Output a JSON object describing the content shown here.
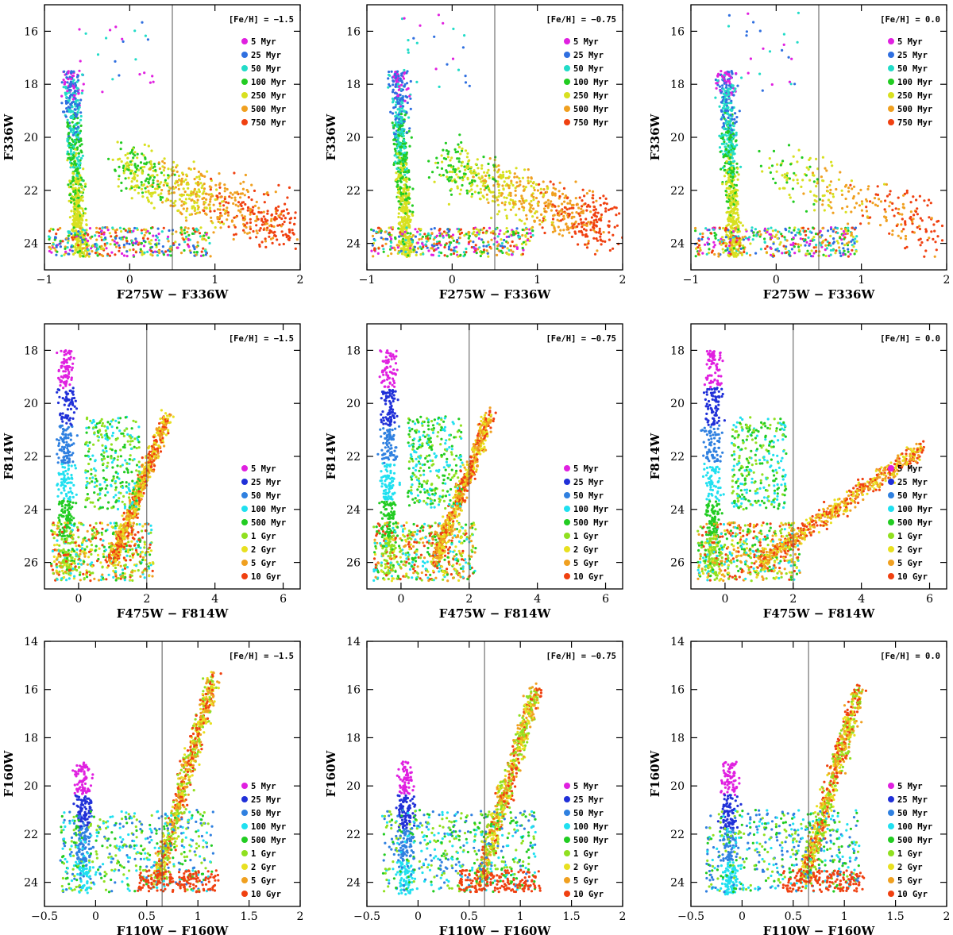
{
  "chart_data": [
    {
      "type": "scatter",
      "row": 0,
      "col": 0,
      "annotation": "[Fe/H] = −1.5",
      "xlabel": "F275W − F336W",
      "ylabel": "F336W",
      "xlim": [
        -1,
        2
      ],
      "ylim": [
        25,
        15
      ],
      "xticks": [
        "−1",
        "0",
        "1",
        "2"
      ],
      "xtick_values": [
        -1,
        0,
        1,
        2
      ],
      "yticks": [
        "16",
        "18",
        "20",
        "22",
        "24"
      ],
      "ytick_values": [
        16,
        18,
        20,
        22,
        24
      ],
      "cut_x": 0.5,
      "legend_position": "top-right",
      "legend": [
        "5 Myr",
        "25 Myr",
        "50 Myr",
        "100 Myr",
        "250 Myr",
        "500 Myr",
        "750 Myr"
      ],
      "legend_colors": [
        "#e020e0",
        "#2f6fe0",
        "#22dcc8",
        "#22cc22",
        "#d8e020",
        "#f0a020",
        "#f04010"
      ]
    },
    {
      "type": "scatter",
      "row": 0,
      "col": 1,
      "annotation": "[Fe/H] = −0.75",
      "xlabel": "F275W − F336W",
      "ylabel": "F336W",
      "xlim": [
        -1,
        2
      ],
      "ylim": [
        25,
        15
      ],
      "xticks": [
        "−1",
        "0",
        "1",
        "2"
      ],
      "xtick_values": [
        -1,
        0,
        1,
        2
      ],
      "yticks": [
        "16",
        "18",
        "20",
        "22",
        "24"
      ],
      "ytick_values": [
        16,
        18,
        20,
        22,
        24
      ],
      "cut_x": 0.5,
      "legend_position": "top-right",
      "legend": [
        "5 Myr",
        "25 Myr",
        "50 Myr",
        "100 Myr",
        "250 Myr",
        "500 Myr",
        "750 Myr"
      ],
      "legend_colors": [
        "#e020e0",
        "#2f6fe0",
        "#22dcc8",
        "#22cc22",
        "#d8e020",
        "#f0a020",
        "#f04010"
      ]
    },
    {
      "type": "scatter",
      "row": 0,
      "col": 2,
      "annotation": "[Fe/H] = 0.0",
      "xlabel": "F275W − F336W",
      "ylabel": "F336W",
      "xlim": [
        -1,
        2
      ],
      "ylim": [
        25,
        15
      ],
      "xticks": [
        "−1",
        "0",
        "1",
        "2"
      ],
      "xtick_values": [
        -1,
        0,
        1,
        2
      ],
      "yticks": [
        "16",
        "18",
        "20",
        "22",
        "24"
      ],
      "ytick_values": [
        16,
        18,
        20,
        22,
        24
      ],
      "cut_x": 0.5,
      "legend_position": "top-right",
      "legend": [
        "5 Myr",
        "25 Myr",
        "50 Myr",
        "100 Myr",
        "250 Myr",
        "500 Myr",
        "750 Myr"
      ],
      "legend_colors": [
        "#e020e0",
        "#2f6fe0",
        "#22dcc8",
        "#22cc22",
        "#d8e020",
        "#f0a020",
        "#f04010"
      ]
    },
    {
      "type": "scatter",
      "row": 1,
      "col": 0,
      "annotation": "[Fe/H] = −1.5",
      "xlabel": "F475W − F814W",
      "ylabel": "F814W",
      "xlim": [
        -1,
        6.5
      ],
      "ylim": [
        27,
        17
      ],
      "xticks": [
        "0",
        "2",
        "4",
        "6"
      ],
      "xtick_values": [
        0,
        2,
        4,
        6
      ],
      "yticks": [
        "18",
        "20",
        "22",
        "24",
        "26"
      ],
      "ytick_values": [
        18,
        20,
        22,
        24,
        26
      ],
      "cut_x": 2,
      "legend_position": "lower-right",
      "legend": [
        "5 Myr",
        "25 Myr",
        "50 Myr",
        "100 Myr",
        "500 Myr",
        "1 Gyr",
        "2 Gyr",
        "5 Gyr",
        "10 Gyr"
      ],
      "legend_colors": [
        "#e020e0",
        "#2030d8",
        "#2f80e0",
        "#20e0f0",
        "#22cc22",
        "#90e020",
        "#e8e020",
        "#f0a020",
        "#f04010"
      ]
    },
    {
      "type": "scatter",
      "row": 1,
      "col": 1,
      "annotation": "[Fe/H] = −0.75",
      "xlabel": "F475W − F814W",
      "ylabel": "F814W",
      "xlim": [
        -1,
        6.5
      ],
      "ylim": [
        27,
        17
      ],
      "xticks": [
        "0",
        "2",
        "4",
        "6"
      ],
      "xtick_values": [
        0,
        2,
        4,
        6
      ],
      "yticks": [
        "18",
        "20",
        "22",
        "24",
        "26"
      ],
      "ytick_values": [
        18,
        20,
        22,
        24,
        26
      ],
      "cut_x": 2,
      "legend_position": "lower-right",
      "legend": [
        "5 Myr",
        "25 Myr",
        "50 Myr",
        "100 Myr",
        "500 Myr",
        "1 Gyr",
        "2 Gyr",
        "5 Gyr",
        "10 Gyr"
      ],
      "legend_colors": [
        "#e020e0",
        "#2030d8",
        "#2f80e0",
        "#20e0f0",
        "#22cc22",
        "#90e020",
        "#e8e020",
        "#f0a020",
        "#f04010"
      ]
    },
    {
      "type": "scatter",
      "row": 1,
      "col": 2,
      "annotation": "[Fe/H] = 0.0",
      "xlabel": "F475W − F814W",
      "ylabel": "F814W",
      "xlim": [
        -1,
        6.5
      ],
      "ylim": [
        27,
        17
      ],
      "xticks": [
        "0",
        "2",
        "4",
        "6"
      ],
      "xtick_values": [
        0,
        2,
        4,
        6
      ],
      "yticks": [
        "18",
        "20",
        "22",
        "24",
        "26"
      ],
      "ytick_values": [
        18,
        20,
        22,
        24,
        26
      ],
      "cut_x": 2,
      "legend_position": "lower-right",
      "legend": [
        "5 Myr",
        "25 Myr",
        "50 Myr",
        "100 Myr",
        "500 Myr",
        "1 Gyr",
        "2 Gyr",
        "5 Gyr",
        "10 Gyr"
      ],
      "legend_colors": [
        "#e020e0",
        "#2030d8",
        "#2f80e0",
        "#20e0f0",
        "#22cc22",
        "#90e020",
        "#e8e020",
        "#f0a020",
        "#f04010"
      ]
    },
    {
      "type": "scatter",
      "row": 2,
      "col": 0,
      "annotation": "[Fe/H] = −1.5",
      "xlabel": "F110W − F160W",
      "ylabel": "F160W",
      "xlim": [
        -0.5,
        2
      ],
      "ylim": [
        25,
        14
      ],
      "xticks": [
        "−0.5",
        "0",
        "0.5",
        "1",
        "1.5",
        "2"
      ],
      "xtick_values": [
        -0.5,
        0,
        0.5,
        1,
        1.5,
        2
      ],
      "yticks": [
        "14",
        "16",
        "18",
        "20",
        "22",
        "24"
      ],
      "ytick_values": [
        14,
        16,
        18,
        20,
        22,
        24
      ],
      "cut_x": 0.65,
      "legend_position": "lower-right",
      "legend": [
        "5 Myr",
        "25 Myr",
        "50 Myr",
        "100 Myr",
        "500 Myr",
        "1 Gyr",
        "2 Gyr",
        "5 Gyr",
        "10 Gyr"
      ],
      "legend_colors": [
        "#e020e0",
        "#2030d8",
        "#2f80e0",
        "#20e0f0",
        "#22cc22",
        "#90e020",
        "#e8e020",
        "#f0a020",
        "#f04010"
      ]
    },
    {
      "type": "scatter",
      "row": 2,
      "col": 1,
      "annotation": "[Fe/H] = −0.75",
      "xlabel": "F110W − F160W",
      "ylabel": "F160W",
      "xlim": [
        -0.5,
        2
      ],
      "ylim": [
        25,
        14
      ],
      "xticks": [
        "−0.5",
        "0",
        "0.5",
        "1",
        "1.5",
        "2"
      ],
      "xtick_values": [
        -0.5,
        0,
        0.5,
        1,
        1.5,
        2
      ],
      "yticks": [
        "14",
        "16",
        "18",
        "20",
        "22",
        "24"
      ],
      "ytick_values": [
        14,
        16,
        18,
        20,
        22,
        24
      ],
      "cut_x": 0.65,
      "legend_position": "lower-right",
      "legend": [
        "5 Myr",
        "25 Myr",
        "50 Myr",
        "100 Myr",
        "500 Myr",
        "1 Gyr",
        "2 Gyr",
        "5 Gyr",
        "10 Gyr"
      ],
      "legend_colors": [
        "#e020e0",
        "#2030d8",
        "#2f80e0",
        "#20e0f0",
        "#22cc22",
        "#90e020",
        "#e8e020",
        "#f0a020",
        "#f04010"
      ]
    },
    {
      "type": "scatter",
      "row": 2,
      "col": 2,
      "annotation": "[Fe/H] = 0.0",
      "xlabel": "F110W − F160W",
      "ylabel": "F160W",
      "xlim": [
        -0.5,
        2
      ],
      "ylim": [
        25,
        14
      ],
      "xticks": [
        "−0.5",
        "0",
        "0.5",
        "1",
        "1.5",
        "2"
      ],
      "xtick_values": [
        -0.5,
        0,
        0.5,
        1,
        1.5,
        2
      ],
      "yticks": [
        "14",
        "16",
        "18",
        "20",
        "22",
        "24"
      ],
      "ytick_values": [
        14,
        16,
        18,
        20,
        22,
        24
      ],
      "cut_x": 0.65,
      "legend_position": "lower-right",
      "legend": [
        "5 Myr",
        "25 Myr",
        "50 Myr",
        "100 Myr",
        "500 Myr",
        "1 Gyr",
        "2 Gyr",
        "5 Gyr",
        "10 Gyr"
      ],
      "legend_colors": [
        "#e020e0",
        "#2030d8",
        "#2f80e0",
        "#20e0f0",
        "#22cc22",
        "#90e020",
        "#e8e020",
        "#f0a020",
        "#f04010"
      ]
    }
  ]
}
